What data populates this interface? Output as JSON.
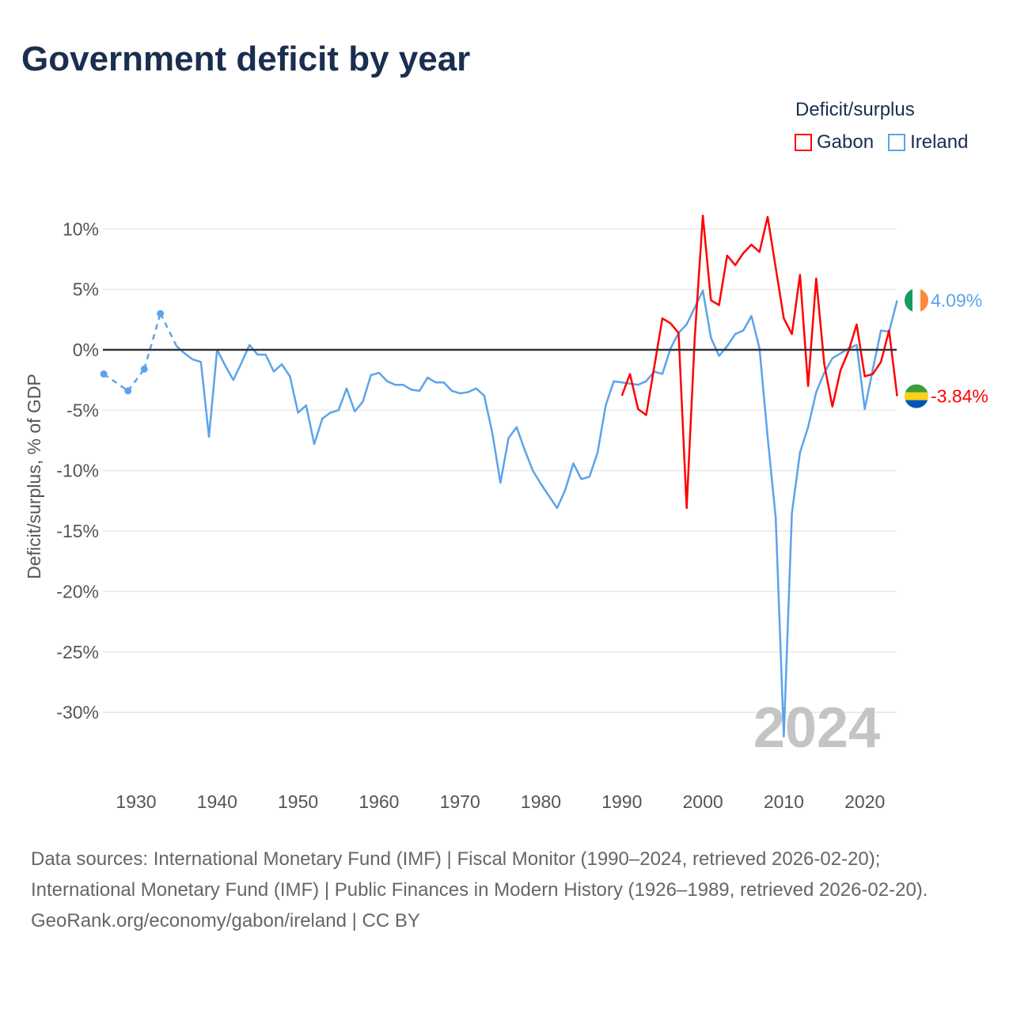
{
  "title": "Government deficit by year",
  "legend": {
    "title": "Deficit/surplus",
    "items": [
      {
        "name": "Gabon",
        "color": "#ff0000"
      },
      {
        "name": "Ireland",
        "color": "#5ba3ec"
      }
    ]
  },
  "footer": {
    "sources": "Data sources: International Monetary Fund (IMF) | Fiscal Monitor (1990–2024, retrieved 2026-02-20); International Monetary Fund (IMF) | Public Finances in Modern History (1926–1989, retrieved 2026-02-20).",
    "credit": "GeoRank.org/economy/gabon/ireland | CC BY"
  },
  "chart_data": {
    "type": "line",
    "title": "Government deficit by year",
    "ylabel": "Deficit/surplus, % of GDP",
    "xlabel": "",
    "ylim": [
      -33,
      11
    ],
    "xlim": [
      1926,
      2024
    ],
    "yticks": [
      10,
      5,
      0,
      -5,
      -10,
      -15,
      -20,
      -25,
      -30
    ],
    "ytick_labels": [
      "10%",
      "5%",
      "0%",
      "-5%",
      "-10%",
      "-15%",
      "-20%",
      "-25%",
      "-30%"
    ],
    "xticks": [
      1930,
      1940,
      1950,
      1960,
      1970,
      1980,
      1990,
      2000,
      2010,
      2020
    ],
    "xtick_labels": [
      "1930",
      "1940",
      "1950",
      "1960",
      "1970",
      "1980",
      "1990",
      "2000",
      "2010",
      "2020"
    ],
    "year_watermark": "2024",
    "grid": true,
    "legend_position": "top-right",
    "series": [
      {
        "name": "Ireland",
        "color": "#5ba3ec",
        "end_label": "4.09%",
        "flag": "ireland",
        "points": [
          [
            1926,
            -2.0
          ],
          [
            1929,
            -3.4
          ],
          [
            1931,
            -1.6
          ],
          [
            1933,
            3.0
          ],
          [
            1935,
            0.3
          ],
          [
            1936,
            -0.3
          ],
          [
            1937,
            -0.8
          ],
          [
            1938,
            -1.0
          ],
          [
            1939,
            -7.2
          ],
          [
            1940,
            0.0
          ],
          [
            1941,
            -1.3
          ],
          [
            1942,
            -2.5
          ],
          [
            1943,
            -1.1
          ],
          [
            1944,
            0.4
          ],
          [
            1945,
            -0.4
          ],
          [
            1946,
            -0.4
          ],
          [
            1947,
            -1.8
          ],
          [
            1948,
            -1.2
          ],
          [
            1949,
            -2.2
          ],
          [
            1950,
            -5.2
          ],
          [
            1951,
            -4.6
          ],
          [
            1952,
            -7.8
          ],
          [
            1953,
            -5.7
          ],
          [
            1954,
            -5.2
          ],
          [
            1955,
            -5.0
          ],
          [
            1956,
            -3.2
          ],
          [
            1957,
            -5.1
          ],
          [
            1958,
            -4.3
          ],
          [
            1959,
            -2.1
          ],
          [
            1960,
            -1.9
          ],
          [
            1961,
            -2.6
          ],
          [
            1962,
            -2.9
          ],
          [
            1963,
            -2.9
          ],
          [
            1964,
            -3.3
          ],
          [
            1965,
            -3.4
          ],
          [
            1966,
            -2.3
          ],
          [
            1967,
            -2.7
          ],
          [
            1968,
            -2.7
          ],
          [
            1969,
            -3.4
          ],
          [
            1970,
            -3.6
          ],
          [
            1971,
            -3.5
          ],
          [
            1972,
            -3.2
          ],
          [
            1973,
            -3.8
          ],
          [
            1974,
            -6.9
          ],
          [
            1975,
            -11.0
          ],
          [
            1976,
            -7.3
          ],
          [
            1977,
            -6.4
          ],
          [
            1978,
            -8.3
          ],
          [
            1979,
            -10.0
          ],
          [
            1980,
            -11.1
          ],
          [
            1981,
            -12.1
          ],
          [
            1982,
            -13.1
          ],
          [
            1983,
            -11.6
          ],
          [
            1984,
            -9.4
          ],
          [
            1985,
            -10.7
          ],
          [
            1986,
            -10.5
          ],
          [
            1987,
            -8.5
          ],
          [
            1988,
            -4.6
          ],
          [
            1989,
            -2.6
          ],
          [
            1990,
            -2.7
          ],
          [
            1991,
            -2.8
          ],
          [
            1992,
            -2.9
          ],
          [
            1993,
            -2.6
          ],
          [
            1994,
            -1.8
          ],
          [
            1995,
            -2.0
          ],
          [
            1996,
            0.1
          ],
          [
            1997,
            1.4
          ],
          [
            1998,
            2.1
          ],
          [
            1999,
            3.5
          ],
          [
            2000,
            4.9
          ],
          [
            2001,
            1.0
          ],
          [
            2002,
            -0.5
          ],
          [
            2003,
            0.3
          ],
          [
            2004,
            1.3
          ],
          [
            2005,
            1.6
          ],
          [
            2006,
            2.8
          ],
          [
            2007,
            0.1
          ],
          [
            2008,
            -7.2
          ],
          [
            2009,
            -13.9
          ],
          [
            2010,
            -32.0
          ],
          [
            2011,
            -13.5
          ],
          [
            2012,
            -8.5
          ],
          [
            2013,
            -6.4
          ],
          [
            2014,
            -3.5
          ],
          [
            2015,
            -1.9
          ],
          [
            2016,
            -0.7
          ],
          [
            2017,
            -0.3
          ],
          [
            2018,
            0.1
          ],
          [
            2019,
            0.4
          ],
          [
            2020,
            -4.9
          ],
          [
            2021,
            -1.6
          ],
          [
            2022,
            1.6
          ],
          [
            2023,
            1.5
          ],
          [
            2024,
            4.09
          ]
        ]
      },
      {
        "name": "Gabon",
        "color": "#ff0000",
        "end_label": "-3.84%",
        "flag": "gabon",
        "points": [
          [
            1990,
            -3.8
          ],
          [
            1991,
            -2.0
          ],
          [
            1992,
            -4.9
          ],
          [
            1993,
            -5.4
          ],
          [
            1994,
            -1.4
          ],
          [
            1995,
            2.6
          ],
          [
            1996,
            2.2
          ],
          [
            1997,
            1.4
          ],
          [
            1998,
            -13.1
          ],
          [
            1999,
            1.0
          ],
          [
            2000,
            11.1
          ],
          [
            2001,
            4.1
          ],
          [
            2002,
            3.7
          ],
          [
            2003,
            7.8
          ],
          [
            2004,
            7.0
          ],
          [
            2005,
            8.0
          ],
          [
            2006,
            8.7
          ],
          [
            2007,
            8.1
          ],
          [
            2008,
            11.0
          ],
          [
            2009,
            6.8
          ],
          [
            2010,
            2.6
          ],
          [
            2011,
            1.3
          ],
          [
            2012,
            6.2
          ],
          [
            2013,
            -3.0
          ],
          [
            2014,
            5.9
          ],
          [
            2015,
            -1.2
          ],
          [
            2016,
            -4.7
          ],
          [
            2017,
            -1.7
          ],
          [
            2018,
            -0.1
          ],
          [
            2019,
            2.1
          ],
          [
            2020,
            -2.2
          ],
          [
            2021,
            -2.0
          ],
          [
            2022,
            -1.0
          ],
          [
            2023,
            1.6
          ],
          [
            2024,
            -3.84
          ]
        ]
      }
    ]
  }
}
